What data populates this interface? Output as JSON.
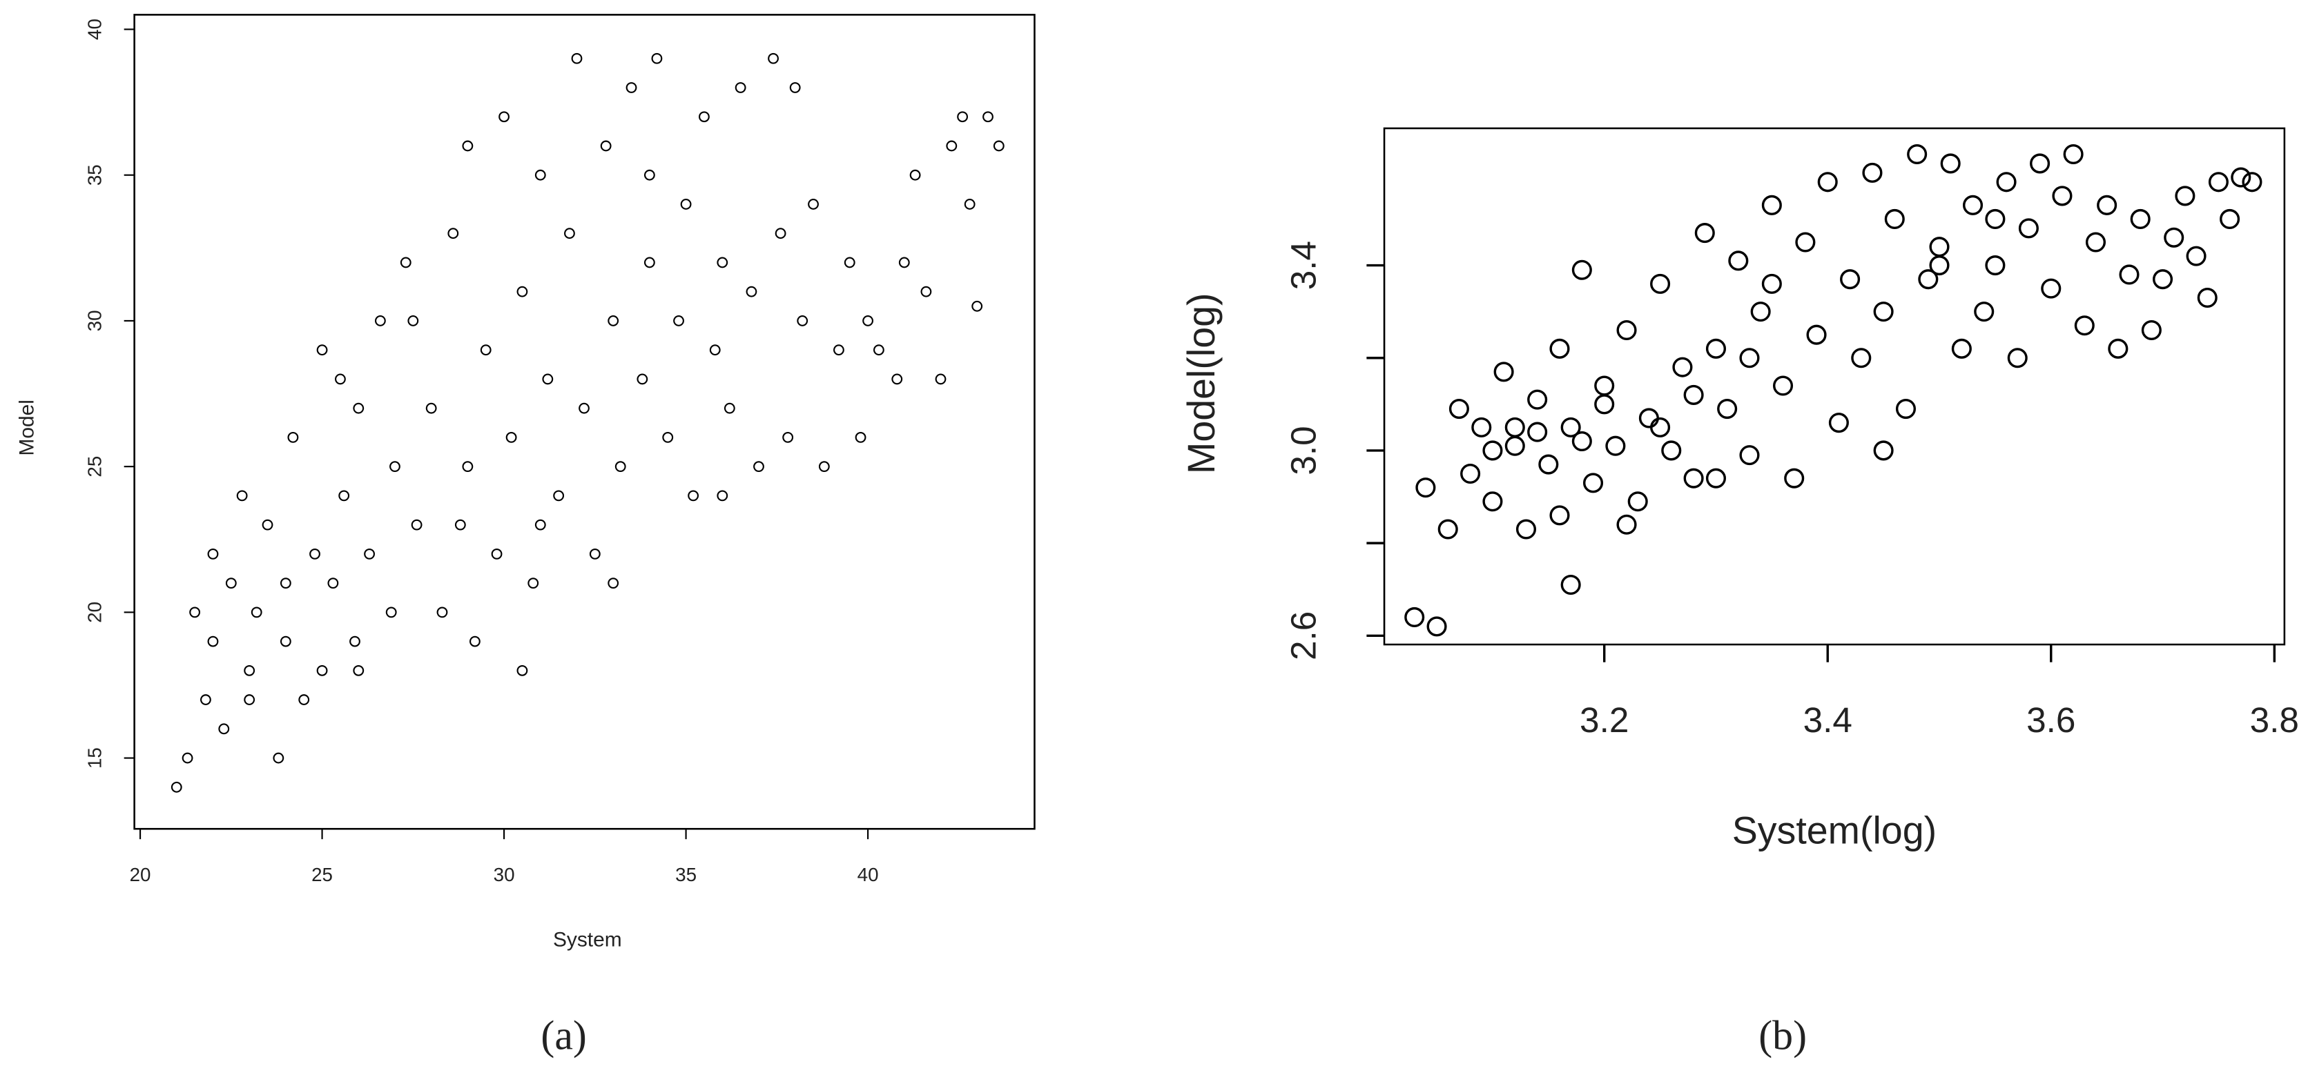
{
  "chart_data": [
    {
      "type": "scatter",
      "caption": "(a)",
      "xlabel": "System",
      "ylabel": "Model",
      "xlim": [
        19.84,
        44.58
      ],
      "ylim": [
        12.57,
        40.5
      ],
      "xticks": [
        20,
        25,
        30,
        35,
        40
      ],
      "yticks": [
        15,
        20,
        25,
        30,
        35,
        40
      ],
      "color": "#000000",
      "x": [
        21,
        21.3,
        21.5,
        21.8,
        22,
        22,
        22.3,
        22.5,
        22.8,
        23,
        23.2,
        23.5,
        23.8,
        24,
        24.2,
        24.5,
        24.8,
        25,
        25,
        25.3,
        25.6,
        25.9,
        26,
        26.3,
        26.6,
        26.9,
        27,
        27.3,
        27.6,
        28,
        28.3,
        28.6,
        29,
        29.2,
        29.5,
        29.8,
        30,
        30.2,
        30.5,
        30.8,
        31,
        31.2,
        31.5,
        31.8,
        32,
        32.2,
        32.5,
        32.8,
        33,
        33.2,
        33.5,
        33.8,
        34,
        34.2,
        34.5,
        34.8,
        35,
        35.2,
        35.5,
        35.8,
        36,
        36.2,
        36.5,
        36.8,
        37,
        37.4,
        37.6,
        37.8,
        38.2,
        38.5,
        38.8,
        39.2,
        39.5,
        39.8,
        40,
        40.3,
        40.8,
        41,
        41.3,
        41.6,
        42,
        42.3,
        42.6,
        42.8,
        43,
        43.3,
        43.6,
        26,
        24,
        23,
        27.5,
        28.8,
        30.5,
        33,
        36,
        31,
        25.5,
        29,
        34,
        38
      ],
      "values": [
        14,
        15,
        20,
        17,
        19,
        22,
        16,
        21,
        24,
        18,
        20,
        23,
        15,
        19,
        26,
        17,
        22,
        18,
        29,
        21,
        24,
        19,
        27,
        22,
        30,
        20,
        25,
        32,
        23,
        27,
        20,
        33,
        25,
        19,
        29,
        22,
        37,
        26,
        31,
        21,
        35,
        28,
        24,
        33,
        39,
        27,
        22,
        36,
        30,
        25,
        38,
        28,
        32,
        39,
        26,
        30,
        34,
        24,
        37,
        29,
        32,
        27,
        38,
        31,
        25,
        39,
        33,
        26,
        30,
        34,
        25,
        29,
        32,
        26,
        30,
        29,
        28,
        32,
        35,
        31,
        28,
        36,
        37,
        34,
        30.5,
        37,
        36,
        18,
        21,
        17,
        30,
        23,
        18,
        21,
        24,
        23,
        28,
        36,
        35,
        38
      ]
    },
    {
      "type": "scatter",
      "caption": "(b)",
      "xlabel": "System(log)",
      "ylabel": "Model(log)",
      "xlim": [
        3.003,
        3.809
      ],
      "ylim": [
        2.581,
        3.696
      ],
      "xticks": [
        3.2,
        3.4,
        3.6,
        3.8
      ],
      "yticks": [
        2.6,
        {
          "value": 3,
          "label": "3.0"
        },
        3.4
      ],
      "yminor_ticks": [
        2.8,
        3.2
      ],
      "color": "#000000",
      "x": [
        3.03,
        3.04,
        3.05,
        3.06,
        3.07,
        3.08,
        3.09,
        3.1,
        3.11,
        3.12,
        3.13,
        3.14,
        3.15,
        3.16,
        3.17,
        3.17,
        3.18,
        3.19,
        3.2,
        3.21,
        3.22,
        3.23,
        3.24,
        3.25,
        3.26,
        3.27,
        3.28,
        3.29,
        3.3,
        3.31,
        3.32,
        3.33,
        3.34,
        3.35,
        3.36,
        3.37,
        3.38,
        3.39,
        3.4,
        3.41,
        3.42,
        3.43,
        3.44,
        3.45,
        3.46,
        3.47,
        3.48,
        3.49,
        3.5,
        3.51,
        3.52,
        3.53,
        3.54,
        3.55,
        3.56,
        3.57,
        3.58,
        3.59,
        3.6,
        3.61,
        3.62,
        3.63,
        3.64,
        3.65,
        3.66,
        3.67,
        3.68,
        3.69,
        3.7,
        3.71,
        3.72,
        3.73,
        3.74,
        3.75,
        3.76,
        3.77,
        3.78,
        3.1,
        3.14,
        3.16,
        3.2,
        3.22,
        3.25,
        3.18,
        3.12,
        3.28,
        3.3,
        3.33,
        3.35,
        3.45,
        3.5,
        3.55
      ],
      "values": [
        2.64,
        2.92,
        2.62,
        2.83,
        3.09,
        2.95,
        3.05,
        2.89,
        3.17,
        3.01,
        2.83,
        3.11,
        2.97,
        3.22,
        3.05,
        2.71,
        3.39,
        2.93,
        3.14,
        3.01,
        3.26,
        2.89,
        3.07,
        3.36,
        3.0,
        3.18,
        2.94,
        3.47,
        3.22,
        3.09,
        3.41,
        2.99,
        3.3,
        3.53,
        3.14,
        2.94,
        3.45,
        3.25,
        3.58,
        3.06,
        3.37,
        3.2,
        3.6,
        3.3,
        3.5,
        3.09,
        3.64,
        3.37,
        3.44,
        3.62,
        3.22,
        3.53,
        3.3,
        3.4,
        3.58,
        3.2,
        3.48,
        3.62,
        3.35,
        3.55,
        3.64,
        3.27,
        3.45,
        3.53,
        3.22,
        3.38,
        3.5,
        3.26,
        3.37,
        3.46,
        3.55,
        3.42,
        3.33,
        3.58,
        3.5,
        3.59,
        3.58,
        3.0,
        3.04,
        2.86,
        3.1,
        2.84,
        3.05,
        3.02,
        3.05,
        3.12,
        2.94,
        3.2,
        3.36,
        3.0,
        3.4,
        3.5
      ]
    }
  ]
}
